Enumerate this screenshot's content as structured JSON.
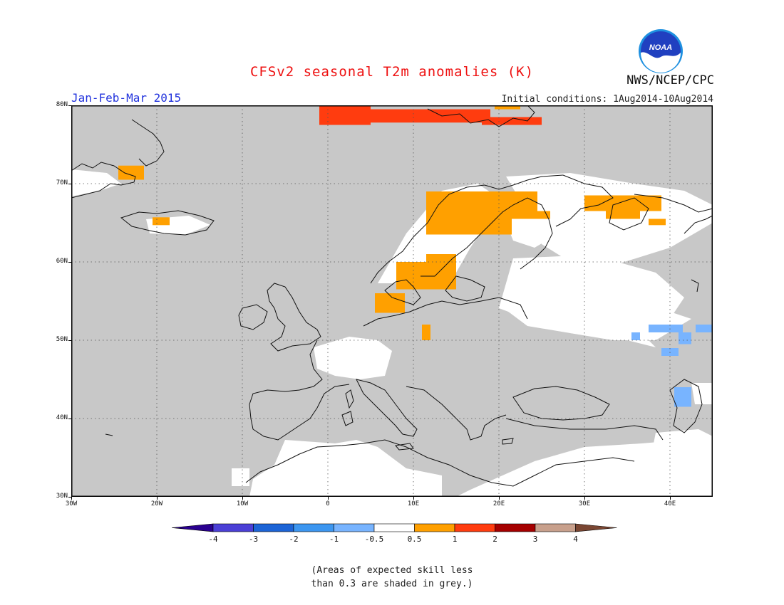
{
  "title": "CFSv2 seasonal T2m anomalies (K)",
  "period": "Jan-Feb-Mar 2015",
  "initial_conditions": "Initial conditions: 1Aug2014-10Aug2014",
  "agency": "NWS/NCEP/CPC",
  "logo": {
    "text": "NOAA",
    "icon": "noaa-logo-icon"
  },
  "map": {
    "lon_range": [
      -30,
      45
    ],
    "lat_range": [
      30,
      80
    ],
    "lon_ticks": [
      {
        "lon": -30,
        "label": "30W"
      },
      {
        "lon": -20,
        "label": "20W"
      },
      {
        "lon": -10,
        "label": "10W"
      },
      {
        "lon": 0,
        "label": "0"
      },
      {
        "lon": 10,
        "label": "10E"
      },
      {
        "lon": 20,
        "label": "20E"
      },
      {
        "lon": 30,
        "label": "30E"
      },
      {
        "lon": 40,
        "label": "40E"
      }
    ],
    "lat_ticks": [
      {
        "lat": 30,
        "label": "30N"
      },
      {
        "lat": 40,
        "label": "40N"
      },
      {
        "lat": 50,
        "label": "50N"
      },
      {
        "lat": 60,
        "label": "60N"
      },
      {
        "lat": 70,
        "label": "70N"
      },
      {
        "lat": 80,
        "label": "80N"
      }
    ],
    "colors": {
      "grey": "#c8c8c8",
      "white": "#ffffff",
      "orange": "#ffa000",
      "red": "#ff3c0f",
      "lightblue": "#78b4ff"
    },
    "anomaly_regions": [
      {
        "cls": "0.5-1",
        "color": "orange",
        "lon": [
          -24.5,
          -21.5
        ],
        "lat": [
          70.5,
          72.3
        ]
      },
      {
        "cls": "0.5-1",
        "color": "orange",
        "lon": [
          -20.5,
          -18.5
        ],
        "lat": [
          64.7,
          65.7
        ]
      },
      {
        "cls": "0.5-1",
        "color": "orange",
        "lon": [
          11.5,
          21.5
        ],
        "lat": [
          63.5,
          69
        ]
      },
      {
        "cls": "0.5-1",
        "color": "orange",
        "lon": [
          19.5,
          24.5
        ],
        "lat": [
          65.5,
          69
        ]
      },
      {
        "cls": "0.5-1",
        "color": "orange",
        "lon": [
          24,
          26
        ],
        "lat": [
          65.5,
          66.5
        ]
      },
      {
        "cls": "0.5-1",
        "color": "orange",
        "lon": [
          8,
          15
        ],
        "lat": [
          56.5,
          60
        ]
      },
      {
        "cls": "0.5-1",
        "color": "orange",
        "lon": [
          11.5,
          15
        ],
        "lat": [
          60,
          61
        ]
      },
      {
        "cls": "0.5-1",
        "color": "orange",
        "lon": [
          5.5,
          9
        ],
        "lat": [
          53.5,
          56
        ]
      },
      {
        "cls": "0.5-1",
        "color": "orange",
        "lon": [
          11,
          12
        ],
        "lat": [
          50,
          52
        ]
      },
      {
        "cls": "0.5-1",
        "color": "orange",
        "lon": [
          30,
          39
        ],
        "lat": [
          66.5,
          68.5
        ]
      },
      {
        "cls": "0.5-1",
        "color": "orange",
        "lon": [
          32.5,
          36.5
        ],
        "lat": [
          65.5,
          66.5
        ]
      },
      {
        "cls": "0.5-1",
        "color": "orange",
        "lon": [
          37.5,
          39.5
        ],
        "lat": [
          64.7,
          65.5
        ]
      },
      {
        "cls": "0.5-1",
        "color": "orange",
        "lon": [
          19.5,
          22.5
        ],
        "lat": [
          79.5,
          80
        ]
      },
      {
        "cls": "1-2",
        "color": "red",
        "lon": [
          -1,
          5
        ],
        "lat": [
          77.5,
          80
        ]
      },
      {
        "cls": "1-2",
        "color": "red",
        "lon": [
          2,
          19
        ],
        "lat": [
          77.8,
          79.5
        ]
      },
      {
        "cls": "1-2",
        "color": "red",
        "lon": [
          18,
          25
        ],
        "lat": [
          77.5,
          78.5
        ]
      },
      {
        "cls": "-1--0.5",
        "color": "lightblue",
        "lon": [
          35.5,
          36.5
        ],
        "lat": [
          50,
          51
        ]
      },
      {
        "cls": "-1--0.5",
        "color": "lightblue",
        "lon": [
          37.5,
          41.5
        ],
        "lat": [
          51,
          52
        ]
      },
      {
        "cls": "-1--0.5",
        "color": "lightblue",
        "lon": [
          39,
          41
        ],
        "lat": [
          48,
          49
        ]
      },
      {
        "cls": "-1--0.5",
        "color": "lightblue",
        "lon": [
          41,
          42.5
        ],
        "lat": [
          49.5,
          51
        ]
      },
      {
        "cls": "-1--0.5",
        "color": "lightblue",
        "lon": [
          43,
          45
        ],
        "lat": [
          51,
          52
        ]
      },
      {
        "cls": "-1--0.5",
        "color": "lightblue",
        "lon": [
          40.5,
          42.5
        ],
        "lat": [
          41.5,
          44
        ]
      }
    ]
  },
  "colorbar": {
    "labels": [
      "-4",
      "-3",
      "-2",
      "-1",
      "-0.5",
      "0.5",
      "1",
      "2",
      "3",
      "4"
    ],
    "colors": [
      "#2a0090",
      "#4b3fd6",
      "#1c64d6",
      "#3c96f0",
      "#78b4ff",
      "#ffffff",
      "#ffa000",
      "#ff3c0f",
      "#a50000",
      "#c8a08c",
      "#7a4632"
    ]
  },
  "note": {
    "line1": "(Areas of expected skill less",
    "line2": "than 0.3 are shaded in grey.)"
  }
}
